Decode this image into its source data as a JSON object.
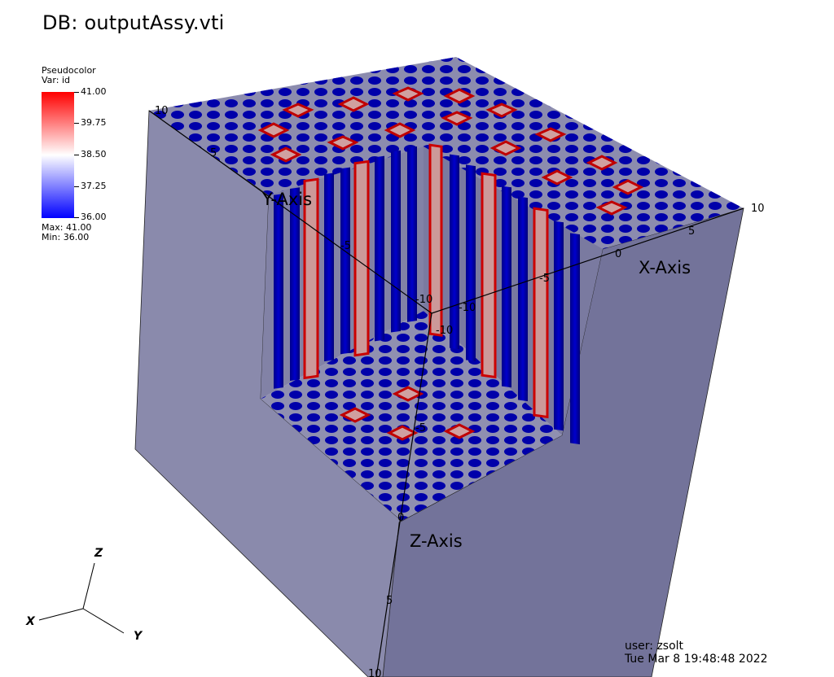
{
  "header": {
    "title": "DB: outputAssy.vti"
  },
  "legend": {
    "plot_type": "Pseudocolor",
    "var_line": "Var: id",
    "ticks": [
      "41.00",
      "39.75",
      "38.50",
      "37.25",
      "36.00"
    ],
    "max_line": "Max:  41.00",
    "min_line": "Min:  36.00",
    "colors": {
      "high": "#ff0000",
      "mid": "#ffffff",
      "low": "#0000ff"
    }
  },
  "axes": {
    "x_label": "X-Axis",
    "y_label": "Y-Axis",
    "z_label": "Z-Axis",
    "x_ticks": [
      "10",
      "5",
      "0",
      "-5",
      "-10"
    ],
    "y_ticks": [
      "10",
      "5",
      "0",
      "-5",
      "-10"
    ],
    "z_ticks": [
      "10",
      "5",
      "0",
      "-5",
      "-10"
    ]
  },
  "triad": {
    "x": "X",
    "y": "Y",
    "z": "Z"
  },
  "footer": {
    "user": "user: zsolt",
    "date": "Tue Mar  8 19:48:48 2022"
  },
  "scene_colors": {
    "body": "#8484a4",
    "left_face": "#8a8aac",
    "right_face": "#73739a",
    "rod_low": "#0000aa",
    "rod_high": "#cc0000"
  }
}
